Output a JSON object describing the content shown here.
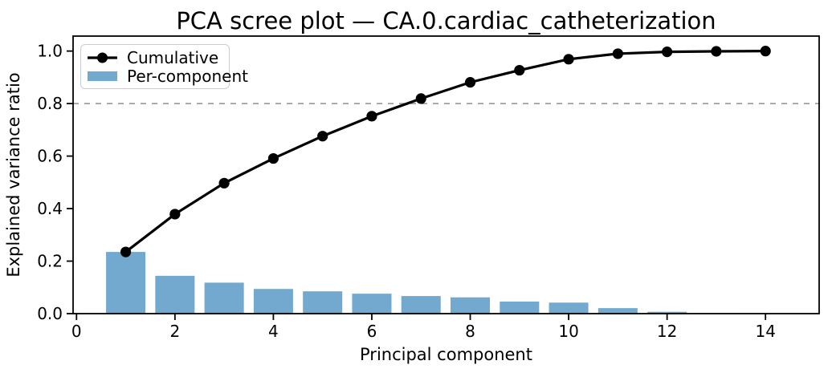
{
  "chart_data": {
    "type": "bar",
    "subtype": "combo-bar-line-scree",
    "title": "PCA scree plot — CA.0.cardiac_catheterization",
    "xlabel": "Principal component",
    "ylabel": "Explained variance ratio",
    "x": [
      1,
      2,
      3,
      4,
      5,
      6,
      7,
      8,
      9,
      10,
      11,
      12,
      13,
      14
    ],
    "series": [
      {
        "name": "Cumulative",
        "type": "line",
        "color": "#000000",
        "marker": "circle",
        "values": [
          0.235,
          0.379,
          0.497,
          0.591,
          0.676,
          0.752,
          0.819,
          0.881,
          0.927,
          0.969,
          0.99,
          0.997,
          0.999,
          1.0
        ]
      },
      {
        "name": "Per-component",
        "type": "bar",
        "color": "#73a9cf",
        "values": [
          0.235,
          0.144,
          0.118,
          0.094,
          0.085,
          0.076,
          0.067,
          0.062,
          0.046,
          0.042,
          0.021,
          0.007,
          0.002,
          0.001
        ]
      }
    ],
    "threshold_line": {
      "y": 0.8,
      "style": "dashed",
      "color": "#9e9e9e"
    },
    "bar_width": 0.8,
    "xlim": [
      -0.07,
      15.09
    ],
    "ylim": [
      0,
      1.057
    ],
    "xticks": [
      0,
      2,
      4,
      6,
      8,
      10,
      12,
      14
    ],
    "xtick_labels": [
      "0",
      "2",
      "4",
      "6",
      "8",
      "10",
      "12",
      "14"
    ],
    "yticks": [
      0.0,
      0.2,
      0.4,
      0.6,
      0.8,
      1.0
    ],
    "ytick_labels": [
      "0.0",
      "0.2",
      "0.4",
      "0.6",
      "0.8",
      "1.0"
    ],
    "grid": false,
    "legend_position": "upper left",
    "axis_color": "#000000",
    "background_color": "#ffffff"
  }
}
